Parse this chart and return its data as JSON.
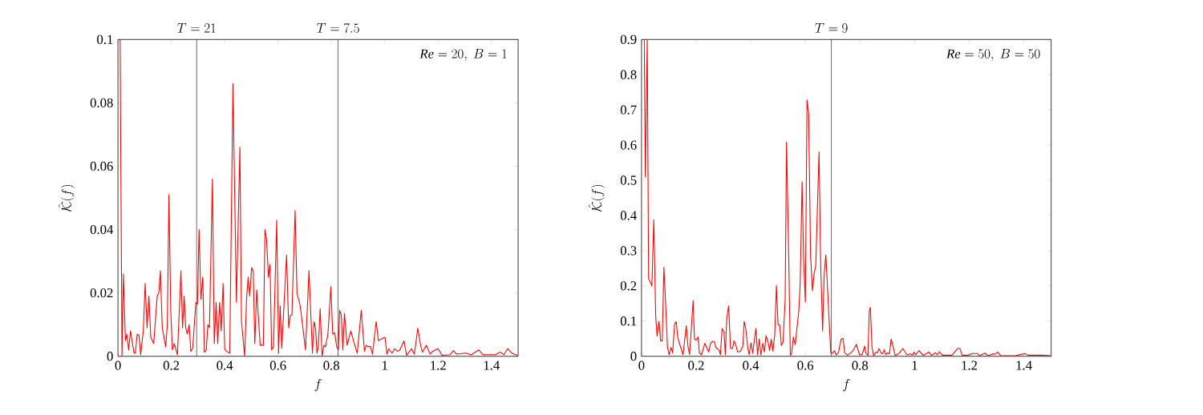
{
  "chart_data": [
    {
      "type": "line",
      "xlabel": "f",
      "ylabel": "\\hat{\\mathcal{K}}(f)",
      "xlim": [
        0,
        1.5
      ],
      "ylim": [
        0,
        0.1
      ],
      "xticks": [
        0,
        0.2,
        0.4,
        0.6,
        0.8,
        1,
        1.2,
        1.4
      ],
      "yticks": [
        0,
        0.02,
        0.04,
        0.06,
        0.08,
        0.1
      ],
      "grid": false,
      "marker": "none",
      "annotations": [
        "\\mathit{Re} = 20,\\ B = 1",
        {
          "text": "T = 21",
          "x": 0.295,
          "y": 0.1
        },
        {
          "text": "T = 7.5",
          "x": 0.825,
          "y": 0.1
        }
      ],
      "ref_lines": [
        {
          "axis": "x",
          "value": 0.295,
          "color": "#000000"
        },
        {
          "axis": "x",
          "value": 0.825,
          "color": "#000000"
        }
      ],
      "series": [
        {
          "color": "#ff0000",
          "x": [
            0.008,
            0.015,
            0.02,
            0.028,
            0.033,
            0.04,
            0.047,
            0.06,
            0.065,
            0.072,
            0.079,
            0.085,
            0.095,
            0.102,
            0.109,
            0.116,
            0.123,
            0.134,
            0.147,
            0.153,
            0.159,
            0.166,
            0.179,
            0.185,
            0.191,
            0.198,
            0.204,
            0.211,
            0.223,
            0.236,
            0.242,
            0.248,
            0.254,
            0.26,
            0.267,
            0.273,
            0.28,
            0.292,
            0.298,
            0.304,
            0.311,
            0.318,
            0.324,
            0.331,
            0.337,
            0.343,
            0.354,
            0.361,
            0.368,
            0.374,
            0.381,
            0.387,
            0.394,
            0.4,
            0.406,
            0.419,
            0.431,
            0.444,
            0.457,
            0.463,
            0.475,
            0.482,
            0.488,
            0.494,
            0.501,
            0.507,
            0.513,
            0.52,
            0.533,
            0.545,
            0.551,
            0.557,
            0.564,
            0.57,
            0.576,
            0.583,
            0.595,
            0.602,
            0.608,
            0.614,
            0.632,
            0.64,
            0.646,
            0.652,
            0.664,
            0.671,
            0.683,
            0.703,
            0.716,
            0.729,
            0.735,
            0.741,
            0.746,
            0.751,
            0.758,
            0.765,
            0.772,
            0.778,
            0.787,
            0.798,
            0.805,
            0.812,
            0.82,
            0.826,
            0.831,
            0.837,
            0.843,
            0.849,
            0.859,
            0.873,
            0.884,
            0.897,
            0.912,
            0.924,
            0.93,
            0.938,
            0.946,
            0.954,
            0.968,
            0.976,
            0.988,
            1.001,
            1.008,
            1.015,
            1.027,
            1.037,
            1.047,
            1.057,
            1.072,
            1.082,
            1.101,
            1.111,
            1.124,
            1.134,
            1.141,
            1.156,
            1.17,
            1.18,
            1.2,
            1.215,
            1.245,
            1.257,
            1.269,
            1.304,
            1.324,
            1.353,
            1.368,
            1.413,
            1.434,
            1.447,
            1.46,
            1.477,
            1.497
          ],
          "values": [
            0.1,
            0,
            0.026,
            0.005,
            0.007,
            0.002,
            0.008,
            0.001,
            0.001,
            0.007,
            0.0065,
            0.0005,
            0.008,
            0.023,
            0.009,
            0.019,
            0.006,
            0.004,
            0.019,
            0.02,
            0.027,
            0.009,
            0.003,
            0.01,
            0.051,
            0.014,
            0.002,
            0.004,
            0.0005,
            0.027,
            0.009,
            0.019,
            0.009,
            0.007,
            0.01,
            0.0015,
            0.0025,
            0.017,
            0.0165,
            0.04,
            0.018,
            0.025,
            0.0013,
            0.002,
            0.01,
            0.009,
            0.056,
            0.004,
            0.017,
            0.004,
            0.017,
            0.008,
            0.023,
            0.0024,
            0.0016,
            0.001,
            0.086,
            0.017,
            0.066,
            0.011,
            0,
            0.018,
            0.025,
            0.019,
            0.028,
            0.027,
            0.004,
            0.021,
            0.0035,
            0.0035,
            0.04,
            0.037,
            0.025,
            0.029,
            0.002,
            0.003,
            0.043,
            0.001,
            0.016,
            0.0025,
            0.032,
            0.009,
            0.013,
            0.013,
            0.046,
            0.02,
            0.016,
            0.002,
            0.027,
            0.001,
            0.011,
            0.0085,
            0.001,
            0.003,
            0.015,
            0,
            0.0035,
            0.003,
            0.007,
            0.022,
            0.007,
            0.0075,
            0.003,
            0.002,
            0.0145,
            0.013,
            0.002,
            0.0135,
            0.0035,
            0.008,
            0.0045,
            0.001,
            0.0145,
            0.0015,
            0.0035,
            0.003,
            0.0032,
            0.0007,
            0.011,
            0.005,
            0.0055,
            0.006,
            0.0007,
            0.0024,
            0.001,
            0.0024,
            0.0016,
            0.002,
            0.0049,
            0.0003,
            0.0024,
            0.0007,
            0.0089,
            0.0037,
            0.0013,
            0.0035,
            0.0007,
            0.0016,
            0.0024,
            0.0003,
            0.0005,
            0.0018,
            0.0007,
            0.001,
            0.0005,
            0.002,
            0.0005,
            0.0005,
            0.0013,
            0.0005,
            0.0024,
            0.001,
            0.0003
          ]
        }
      ]
    },
    {
      "type": "line",
      "xlabel": "f",
      "ylabel": "\\hat{\\mathcal{K}}(f)",
      "xlim": [
        0,
        1.5
      ],
      "ylim": [
        0,
        0.9
      ],
      "xticks": [
        0,
        0.2,
        0.4,
        0.6,
        0.8,
        1,
        1.2,
        1.4
      ],
      "yticks": [
        0,
        0.1,
        0.2,
        0.3,
        0.4,
        0.5,
        0.6,
        0.7,
        0.8,
        0.9
      ],
      "grid": false,
      "marker": "none",
      "annotations": [
        "\\mathit{Re} = 50,\\ B = 50",
        {
          "text": "T = 9",
          "x": 0.695,
          "y": 0.9
        }
      ],
      "ref_lines": [
        {
          "axis": "x",
          "value": 0.695,
          "color": "#000000"
        }
      ],
      "series": [
        {
          "color": "#ff0000",
          "x": [
            0.01,
            0.014,
            0.021,
            0.026,
            0.033,
            0.038,
            0.045,
            0.052,
            0.057,
            0.064,
            0.07,
            0.076,
            0.082,
            0.089,
            0.095,
            0.101,
            0.108,
            0.114,
            0.121,
            0.127,
            0.133,
            0.14,
            0.152,
            0.164,
            0.17,
            0.176,
            0.189,
            0.194,
            0.2,
            0.207,
            0.212,
            0.22,
            0.232,
            0.246,
            0.253,
            0.26,
            0.267,
            0.272,
            0.284,
            0.289,
            0.295,
            0.302,
            0.307,
            0.312,
            0.319,
            0.326,
            0.333,
            0.339,
            0.345,
            0.352,
            0.362,
            0.371,
            0.376,
            0.382,
            0.389,
            0.394,
            0.401,
            0.407,
            0.419,
            0.425,
            0.431,
            0.437,
            0.444,
            0.45,
            0.456,
            0.463,
            0.469,
            0.475,
            0.481,
            0.488,
            0.494,
            0.5,
            0.506,
            0.512,
            0.518,
            0.526,
            0.531,
            0.538,
            0.545,
            0.55,
            0.556,
            0.563,
            0.576,
            0.581,
            0.588,
            0.594,
            0.6,
            0.606,
            0.612,
            0.619,
            0.626,
            0.632,
            0.638,
            0.65,
            0.656,
            0.663,
            0.669,
            0.675,
            0.693,
            0.7,
            0.707,
            0.712,
            0.721,
            0.731,
            0.738,
            0.744,
            0.754,
            0.766,
            0.773,
            0.787,
            0.798,
            0.808,
            0.817,
            0.821,
            0.829,
            0.834,
            0.838,
            0.844,
            0.85,
            0.858,
            0.864,
            0.869,
            0.877,
            0.883,
            0.889,
            0.894,
            0.901,
            0.908,
            0.914,
            0.922,
            0.929,
            0.945,
            0.957,
            0.972,
            0.983,
            0.993,
            0.998,
            1.004,
            1.016,
            1.031,
            1.053,
            1.062,
            1.076,
            1.083,
            1.091,
            1.101,
            1.137,
            1.157,
            1.166,
            1.174,
            1.195,
            1.21,
            1.23,
            1.236,
            1.258,
            1.268,
            1.287,
            1.294,
            1.304,
            1.316,
            1.369,
            1.405,
            1.415,
            1.436,
            1.465,
            1.499
          ],
          "values": [
            0.9,
            0.51,
            0.9,
            0.22,
            0.21,
            0.2,
            0.388,
            0.115,
            0.057,
            0.1,
            0.044,
            0.044,
            0.253,
            0.138,
            0.027,
            0.0045,
            0.025,
            0.01,
            0.091,
            0.098,
            0.052,
            0.034,
            0.0045,
            0.087,
            0.029,
            0.0045,
            0.158,
            0.049,
            0.046,
            0.055,
            0.01,
            0.0045,
            0.037,
            0.012,
            0.037,
            0.042,
            0.042,
            0.025,
            0.018,
            0.0045,
            0.079,
            0.07,
            0.0045,
            0.108,
            0.143,
            0.022,
            0.022,
            0.044,
            0.033,
            0.012,
            0.014,
            0.029,
            0.099,
            0.078,
            0.025,
            0.0045,
            0.038,
            0.009,
            0.079,
            0.0045,
            0.049,
            0.0045,
            0.037,
            0.012,
            0.059,
            0.042,
            0.016,
            0.049,
            0.014,
            0.063,
            0.201,
            0.09,
            0.089,
            0.031,
            0.039,
            0.16,
            0.608,
            0.332,
            0.003,
            0.009,
            0.055,
            0.033,
            0.13,
            0.205,
            0.496,
            0.265,
            0.154,
            0.728,
            0.69,
            0.287,
            0.186,
            0.235,
            0.257,
            0.581,
            0.265,
            0.072,
            0.235,
            0.288,
            0.01,
            0.009,
            0.016,
            0.0045,
            0.01,
            0.049,
            0.051,
            0.01,
            0.003,
            0.01,
            0.014,
            0.034,
            0.0045,
            0.0045,
            0.029,
            0.01,
            0.003,
            0.129,
            0.139,
            0.025,
            0.0015,
            0.012,
            0.01,
            0.022,
            0.01,
            0.007,
            0.019,
            0.005,
            0.01,
            0.007,
            0.049,
            0.025,
            0.0015,
            0.01,
            0.022,
            0.0045,
            0.007,
            0.0045,
            0.012,
            0.0045,
            0.016,
            0.003,
            0.012,
            0.003,
            0.01,
            0.0045,
            0.013,
            0.003,
            0.003,
            0.022,
            0.022,
            0.003,
            0.003,
            0.008,
            0.008,
            0.0015,
            0.009,
            0.0015,
            0.007,
            0.006,
            0.012,
            0.0015,
            0.0015,
            0.008,
            0.003,
            0.003,
            0.003,
            0.0015
          ]
        }
      ]
    }
  ]
}
